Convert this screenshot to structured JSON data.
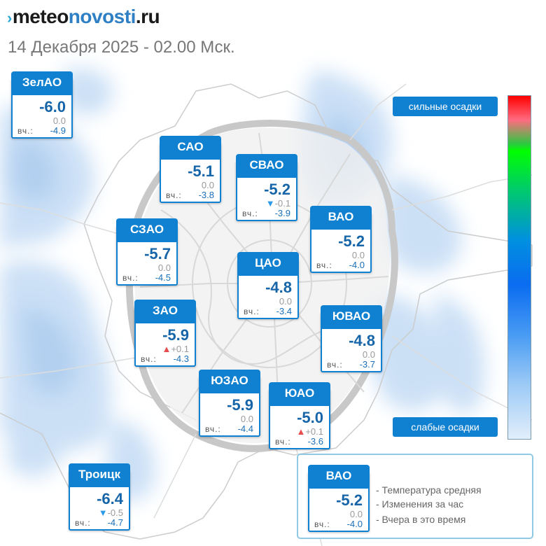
{
  "header": {
    "logo_mark": "›",
    "logo_part1": "meteo",
    "logo_part2": "novosti",
    "logo_part3": ".ru",
    "subtitle": "14 Декабря 2025 - 02.00 Мск."
  },
  "yesterday_label": "вч.:",
  "districts": [
    {
      "id": "zelao",
      "name": "ЗелАО",
      "temp": "-6.0",
      "change": "0.0",
      "trend": "none",
      "yesterday": "-4.9"
    },
    {
      "id": "sao",
      "name": "САО",
      "temp": "-5.1",
      "change": "0.0",
      "trend": "none",
      "yesterday": "-3.8"
    },
    {
      "id": "svao",
      "name": "СВАО",
      "temp": "-5.2",
      "change": "-0.1",
      "trend": "down",
      "yesterday": "-3.9"
    },
    {
      "id": "vao",
      "name": "ВАО",
      "temp": "-5.2",
      "change": "0.0",
      "trend": "none",
      "yesterday": "-4.0"
    },
    {
      "id": "szao",
      "name": "СЗАО",
      "temp": "-5.7",
      "change": "0.0",
      "trend": "none",
      "yesterday": "-4.5"
    },
    {
      "id": "cao",
      "name": "ЦАО",
      "temp": "-4.8",
      "change": "0.0",
      "trend": "none",
      "yesterday": "-3.4"
    },
    {
      "id": "zao",
      "name": "ЗАО",
      "temp": "-5.9",
      "change": "+0.1",
      "trend": "up",
      "yesterday": "-4.3"
    },
    {
      "id": "yuvao",
      "name": "ЮВАО",
      "temp": "-4.8",
      "change": "0.0",
      "trend": "none",
      "yesterday": "-3.7"
    },
    {
      "id": "yuzao",
      "name": "ЮЗАО",
      "temp": "-5.9",
      "change": "0.0",
      "trend": "none",
      "yesterday": "-4.4"
    },
    {
      "id": "yuao",
      "name": "ЮАО",
      "temp": "-5.0",
      "change": "+0.1",
      "trend": "up",
      "yesterday": "-3.6"
    },
    {
      "id": "troitsk",
      "name": "Троицк",
      "temp": "-6.4",
      "change": "-0.5",
      "trend": "down",
      "yesterday": "-4.7"
    }
  ],
  "precipitation_scale": {
    "top_label": "сильные осадки",
    "bottom_label": "слабые осадки",
    "colors": [
      "#ff0000",
      "#ff6b80",
      "#00ff00",
      "#0090e0",
      "#0a6cf0",
      "#9ccaf6",
      "#e2eefb"
    ]
  },
  "legend": {
    "example": {
      "name": "ВАО",
      "temp": "-5.2",
      "change": "0.0",
      "yesterday": "-4.0"
    },
    "desc_temp": "- Температура средняя",
    "desc_change": "- Изменения за час",
    "desc_yesterday": "- Вчера в это время"
  },
  "colors": {
    "accent": "#1080d0",
    "temperature": "#1665a8",
    "precip_light": "#cfe3f7",
    "map_roads": "#d8d8d8"
  }
}
